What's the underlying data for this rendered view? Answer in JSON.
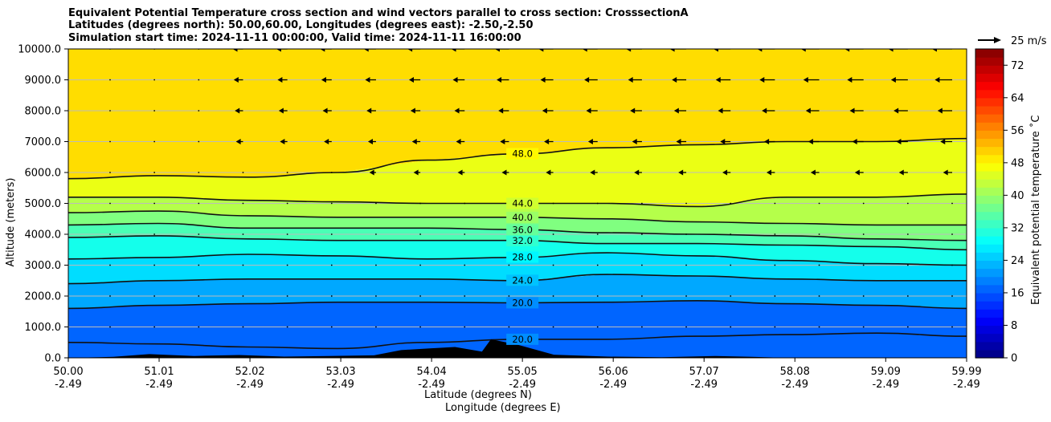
{
  "title_lines": [
    "Equivalent Potential Temperature cross section and wind vectors parallel to cross section: CrosssectionA",
    "Latitudes (degrees north): 50.00,60.00, Longitudes (degrees east): -2.50,-2.50",
    "Simulation start time: 2024-11-11 00:00:00, Valid time: 2024-11-11 16:00:00"
  ],
  "colors": {
    "terrain": "#000000",
    "contour": "#111111",
    "grid": "#bbbbbb",
    "arrow": "#000000"
  },
  "chart_data": {
    "type": "heatmap",
    "title": "Equivalent Potential Temperature cross section and wind vectors parallel to cross section: CrosssectionA",
    "xlabel_lat": "Latitude (degrees N)",
    "xlabel_lon": "Longitude (degrees E)",
    "ylabel": "Altitude (meters)",
    "xlim": [
      50.0,
      59.99
    ],
    "ylim": [
      0,
      10000
    ],
    "x_ticks": [
      {
        "lat": "50.00",
        "lon": "-2.49",
        "value": 50.0
      },
      {
        "lat": "51.01",
        "lon": "-2.49",
        "value": 51.01
      },
      {
        "lat": "52.02",
        "lon": "-2.49",
        "value": 52.02
      },
      {
        "lat": "53.03",
        "lon": "-2.49",
        "value": 53.03
      },
      {
        "lat": "54.04",
        "lon": "-2.49",
        "value": 54.04
      },
      {
        "lat": "55.05",
        "lon": "-2.49",
        "value": 55.05
      },
      {
        "lat": "56.06",
        "lon": "-2.49",
        "value": 56.06
      },
      {
        "lat": "57.07",
        "lon": "-2.49",
        "value": 57.07
      },
      {
        "lat": "58.08",
        "lon": "-2.49",
        "value": 58.08
      },
      {
        "lat": "59.09",
        "lon": "-2.49",
        "value": 59.09
      },
      {
        "lat": "59.99",
        "lon": "-2.49",
        "value": 59.99
      }
    ],
    "y_ticks": [
      {
        "label": "0.0",
        "value": 0
      },
      {
        "label": "1000.0",
        "value": 1000
      },
      {
        "label": "2000.0",
        "value": 2000
      },
      {
        "label": "3000.0",
        "value": 3000
      },
      {
        "label": "4000.0",
        "value": 4000
      },
      {
        "label": "5000.0",
        "value": 5000
      },
      {
        "label": "6000.0",
        "value": 6000
      },
      {
        "label": "7000.0",
        "value": 7000
      },
      {
        "label": "8000.0",
        "value": 8000
      },
      {
        "label": "9000.0",
        "value": 9000
      },
      {
        "label": "10000.0",
        "value": 10000
      }
    ],
    "grid": "horizontal",
    "colorbar": {
      "label": "Equivalent potential temperature ˚C",
      "min": 0,
      "max": 76,
      "step": 2,
      "ticks": [
        {
          "label": "0",
          "value": 0
        },
        {
          "label": "8",
          "value": 8
        },
        {
          "label": "16",
          "value": 16
        },
        {
          "label": "24",
          "value": 24
        },
        {
          "label": "32",
          "value": 32
        },
        {
          "label": "40",
          "value": 40
        },
        {
          "label": "48",
          "value": 48
        },
        {
          "label": "56",
          "value": 56
        },
        {
          "label": "64",
          "value": 64
        },
        {
          "label": "72",
          "value": 72
        }
      ]
    },
    "wind_key": {
      "label": "25 m/s",
      "speed": 25
    },
    "contours": [
      {
        "level": 20,
        "label": "20.0",
        "heights": [
          1600,
          1700,
          1750,
          1800,
          1800,
          1780,
          1800,
          1850,
          1750,
          1700,
          1600
        ]
      },
      {
        "level": 24,
        "label": "24.0",
        "heights": [
          2400,
          2500,
          2550,
          2550,
          2550,
          2500,
          2700,
          2650,
          2550,
          2500,
          2500
        ]
      },
      {
        "level": 28,
        "label": "28.0",
        "heights": [
          3200,
          3250,
          3350,
          3300,
          3200,
          3250,
          3400,
          3300,
          3150,
          3050,
          3000
        ]
      },
      {
        "level": 32,
        "label": "32.0",
        "heights": [
          3900,
          3950,
          3850,
          3800,
          3800,
          3800,
          3700,
          3700,
          3650,
          3600,
          3500
        ]
      },
      {
        "level": 36,
        "label": "36.0",
        "heights": [
          4300,
          4350,
          4200,
          4200,
          4200,
          4150,
          4050,
          4000,
          3950,
          3850,
          3800
        ]
      },
      {
        "level": 40,
        "label": "40.0",
        "heights": [
          4700,
          4750,
          4600,
          4550,
          4550,
          4550,
          4500,
          4400,
          4350,
          4300,
          4300
        ]
      },
      {
        "level": 44,
        "label": "44.0",
        "heights": [
          5200,
          5200,
          5100,
          5050,
          5000,
          5000,
          5000,
          4900,
          5200,
          5200,
          5300
        ]
      },
      {
        "level": 48,
        "label": "48.0",
        "heights": [
          5800,
          5900,
          5850,
          6000,
          6400,
          6600,
          6800,
          6900,
          7000,
          7000,
          7100
        ]
      }
    ],
    "near_surface_contour": {
      "level": 20,
      "label": "20.0",
      "heights": [
        500,
        450,
        350,
        300,
        500,
        600,
        600,
        700,
        750,
        800,
        700
      ]
    },
    "terrain": {
      "lats": [
        50.0,
        50.5,
        50.9,
        51.4,
        51.9,
        52.4,
        52.9,
        53.4,
        53.7,
        54.0,
        54.3,
        54.6,
        54.7,
        55.0,
        55.4,
        56.0,
        56.6,
        57.2,
        57.6,
        58.0,
        59.99
      ],
      "heights": [
        0,
        30,
        120,
        60,
        90,
        40,
        60,
        80,
        250,
        300,
        350,
        200,
        600,
        420,
        100,
        40,
        20,
        60,
        30,
        0,
        0
      ]
    }
  }
}
